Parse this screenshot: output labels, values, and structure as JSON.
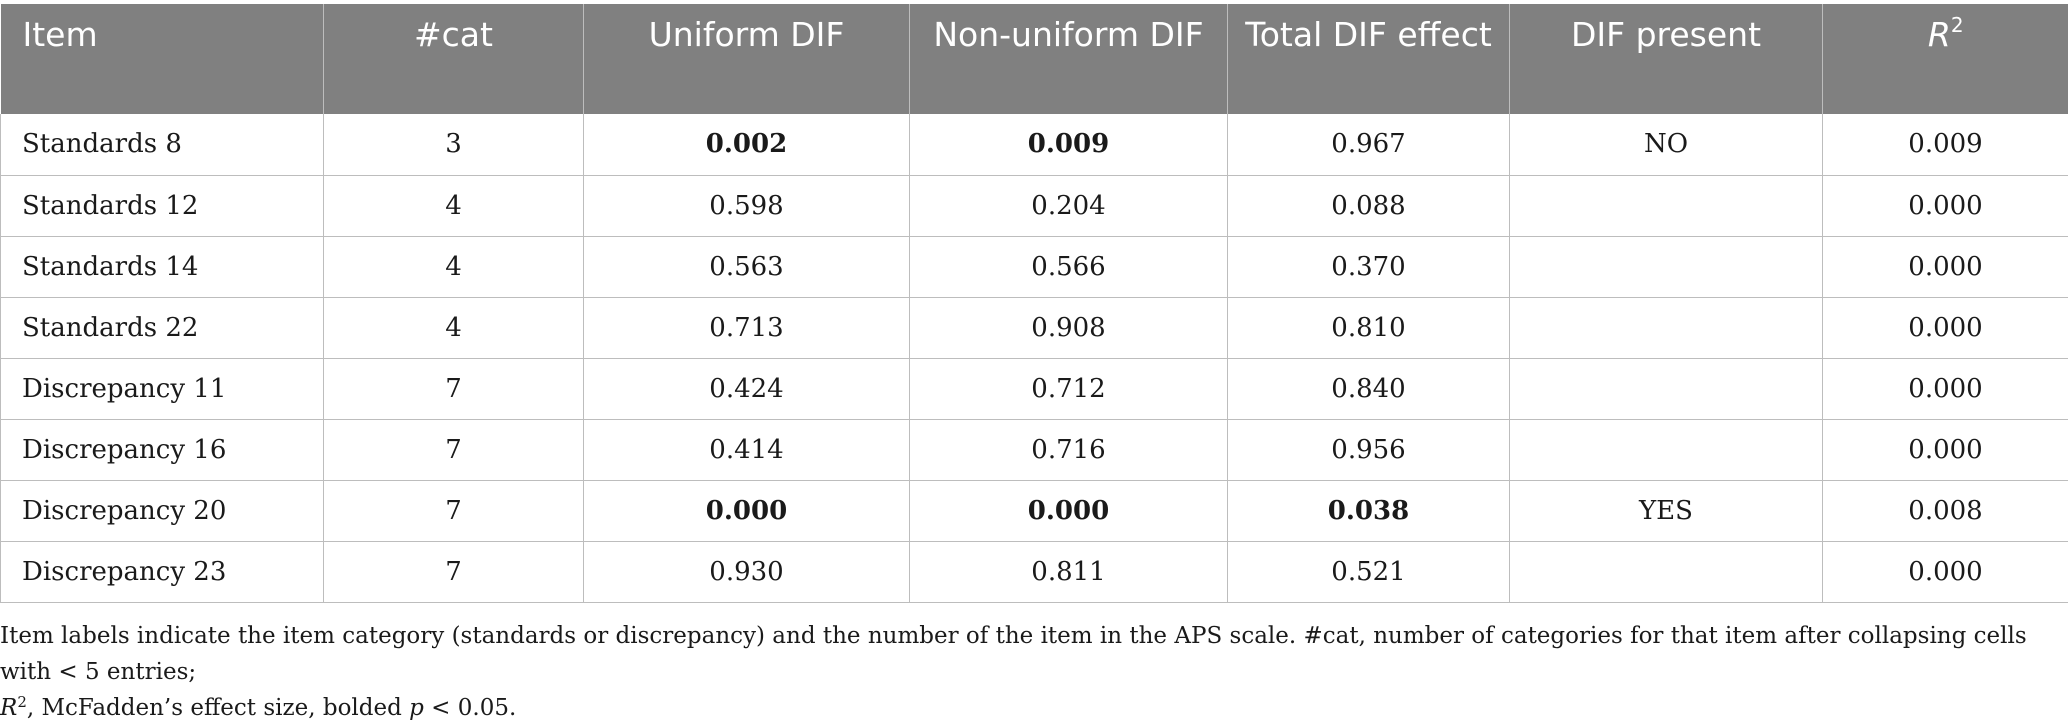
{
  "table": {
    "headers": {
      "item": "Item",
      "cat": "#cat",
      "uniform": "Uniform DIF",
      "nonuniform": "Non-uniform DIF",
      "total": "Total DIF effect",
      "present": "DIF present",
      "r2_base": "R",
      "r2_sup": "2"
    },
    "rows": [
      {
        "item": "Standards 8",
        "cat": "3",
        "uniform": "0.002",
        "nonuniform": "0.009",
        "total": "0.967",
        "present": "NO",
        "r2": "0.009"
      },
      {
        "item": "Standards 12",
        "cat": "4",
        "uniform": "0.598",
        "nonuniform": "0.204",
        "total": "0.088",
        "present": "",
        "r2": "0.000"
      },
      {
        "item": "Standards 14",
        "cat": "4",
        "uniform": "0.563",
        "nonuniform": "0.566",
        "total": "0.370",
        "present": "",
        "r2": "0.000"
      },
      {
        "item": "Standards 22",
        "cat": "4",
        "uniform": "0.713",
        "nonuniform": "0.908",
        "total": "0.810",
        "present": "",
        "r2": "0.000"
      },
      {
        "item": "Discrepancy 11",
        "cat": "7",
        "uniform": "0.424",
        "nonuniform": "0.712",
        "total": "0.840",
        "present": "",
        "r2": "0.000"
      },
      {
        "item": "Discrepancy 16",
        "cat": "7",
        "uniform": "0.414",
        "nonuniform": "0.716",
        "total": "0.956",
        "present": "",
        "r2": "0.000"
      },
      {
        "item": "Discrepancy 20",
        "cat": "7",
        "uniform": "0.000",
        "nonuniform": "0.000",
        "total": "0.038",
        "present": "YES",
        "r2": "0.008"
      },
      {
        "item": "Discrepancy 23",
        "cat": "7",
        "uniform": "0.930",
        "nonuniform": "0.811",
        "total": "0.521",
        "present": "",
        "r2": "0.000"
      }
    ]
  },
  "footnote": {
    "line1": "Item labels indicate the item category (standards or discrepancy) and the number of the item in the APS scale. #cat, number of categories for that item after collapsing cells with < 5 entries;",
    "r_base": "R",
    "r_sup": "2",
    "line2_mid": ", McFadden’s effect size, bolded ",
    "p": "p",
    "line2_end": " < 0.05."
  },
  "colors": {
    "header_bg": "#808080",
    "header_text": "#ffffff",
    "grid": "#bdbdbd"
  }
}
